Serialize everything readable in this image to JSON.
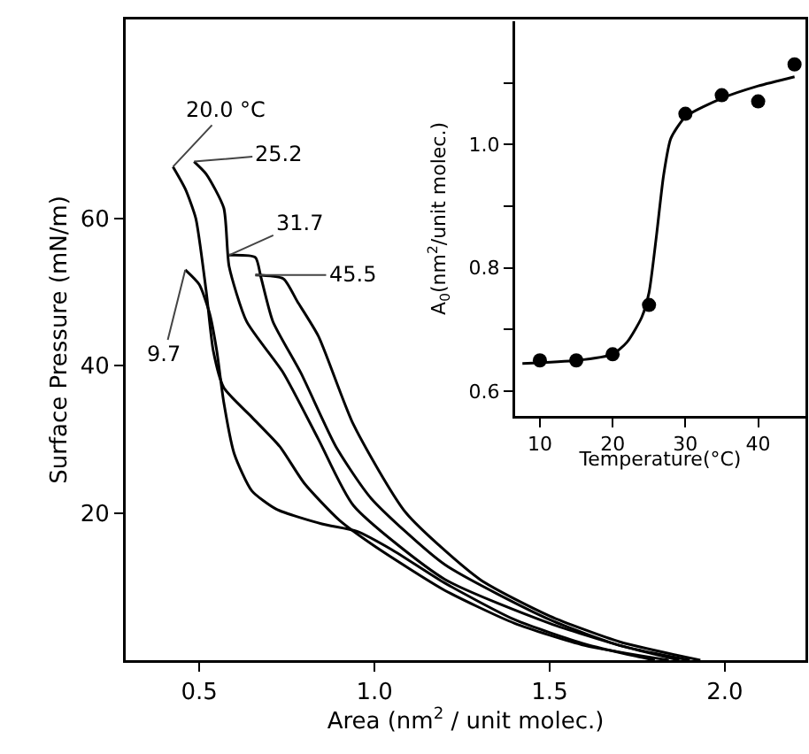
{
  "chart_data": [
    {
      "type": "line",
      "xlabel": "Area (nm$^{2}$ / unit molec.)",
      "ylabel": "Surface Pressure (mN/m)",
      "xlim": [
        0.29,
        2.23
      ],
      "xticks": [
        0.5,
        {
          "value": 1,
          "label": "1.0"
        },
        1.5,
        {
          "value": 2,
          "label": "2.0"
        }
      ],
      "ylim": [
        0,
        87
      ],
      "yticks": [
        20,
        40,
        60
      ],
      "grid": false,
      "legend": false,
      "marker": "none",
      "line_style": "solid",
      "series": [
        {
          "name": "9.7",
          "color": "#000000",
          "x": [
            0.46,
            0.5,
            0.53,
            0.55,
            0.57,
            0.6,
            0.65,
            0.72,
            0.85,
            0.95,
            1.05,
            1.2,
            1.4,
            1.6,
            1.75,
            1.8
          ],
          "values": [
            53,
            51,
            47,
            42,
            35,
            28,
            23,
            20.5,
            18.5,
            17.5,
            15,
            10.5,
            5.5,
            2.2,
            0.5,
            0
          ]
        },
        {
          "name": "20.0 °C",
          "color": "#000000",
          "x": [
            0.425,
            0.46,
            0.49,
            0.52,
            0.54,
            0.57,
            0.65,
            0.73,
            0.8,
            0.9,
            1.0,
            1.2,
            1.4,
            1.6,
            1.84
          ],
          "values": [
            67,
            64,
            60,
            50,
            42,
            37,
            33,
            29,
            24,
            19,
            15.5,
            9.5,
            5,
            2,
            0
          ]
        },
        {
          "name": "25.2",
          "color": "#000000",
          "x": [
            0.485,
            0.52,
            0.57,
            0.585,
            0.635,
            0.74,
            0.84,
            0.94,
            1.2,
            1.5,
            1.7,
            1.87
          ],
          "values": [
            67.7,
            66,
            61.4,
            53.5,
            46,
            39,
            30,
            21,
            11,
            5,
            2,
            0
          ]
        },
        {
          "name": "31.7",
          "color": "#000000",
          "x": [
            0.585,
            0.66,
            0.676,
            0.71,
            0.79,
            0.89,
            0.99,
            1.2,
            1.5,
            1.7,
            1.9
          ],
          "values": [
            55,
            54.7,
            52,
            46,
            39,
            29,
            22,
            13,
            5.5,
            2,
            0
          ]
        },
        {
          "name": "45.5",
          "color": "#000000",
          "x": [
            0.66,
            0.74,
            0.78,
            0.84,
            0.94,
            1.09,
            1.3,
            1.5,
            1.7,
            1.93
          ],
          "values": [
            52.3,
            51.8,
            48.7,
            44,
            32,
            20,
            11,
            6,
            2.5,
            0
          ]
        }
      ]
    },
    {
      "type": "scatter",
      "xlabel": "Temperature(°C)",
      "ylabel": "A$_{0}$(nm$^{2}$/unit molec.)",
      "xlim": [
        6.6,
        46.5
      ],
      "xticks": [
        10,
        20,
        30,
        40
      ],
      "ylim": [
        0.56,
        1.2
      ],
      "yticks": [
        0.6,
        {
          "value": 0.7,
          "label": null
        },
        0.8,
        {
          "value": 0.9,
          "label": null
        },
        {
          "value": 1,
          "label": "1.0"
        },
        {
          "value": 1.1,
          "label": null
        }
      ],
      "grid": false,
      "legend": false,
      "series": [
        {
          "marker": "circle",
          "color": "#000000",
          "x": [
            10,
            15,
            20,
            25,
            30,
            35,
            40,
            45
          ],
          "values": [
            0.65,
            0.65,
            0.66,
            0.74,
            1.05,
            1.08,
            1.07,
            1.13
          ]
        },
        {
          "type": "line",
          "marker": "none",
          "color": "#000000",
          "x": [
            7.6,
            15,
            20,
            22,
            24,
            25,
            26,
            27,
            28,
            30,
            35,
            40,
            45
          ],
          "values": [
            0.645,
            0.65,
            0.66,
            0.68,
            0.72,
            0.76,
            0.85,
            0.95,
            1.01,
            1.045,
            1.075,
            1.095,
            1.11
          ]
        }
      ]
    }
  ]
}
